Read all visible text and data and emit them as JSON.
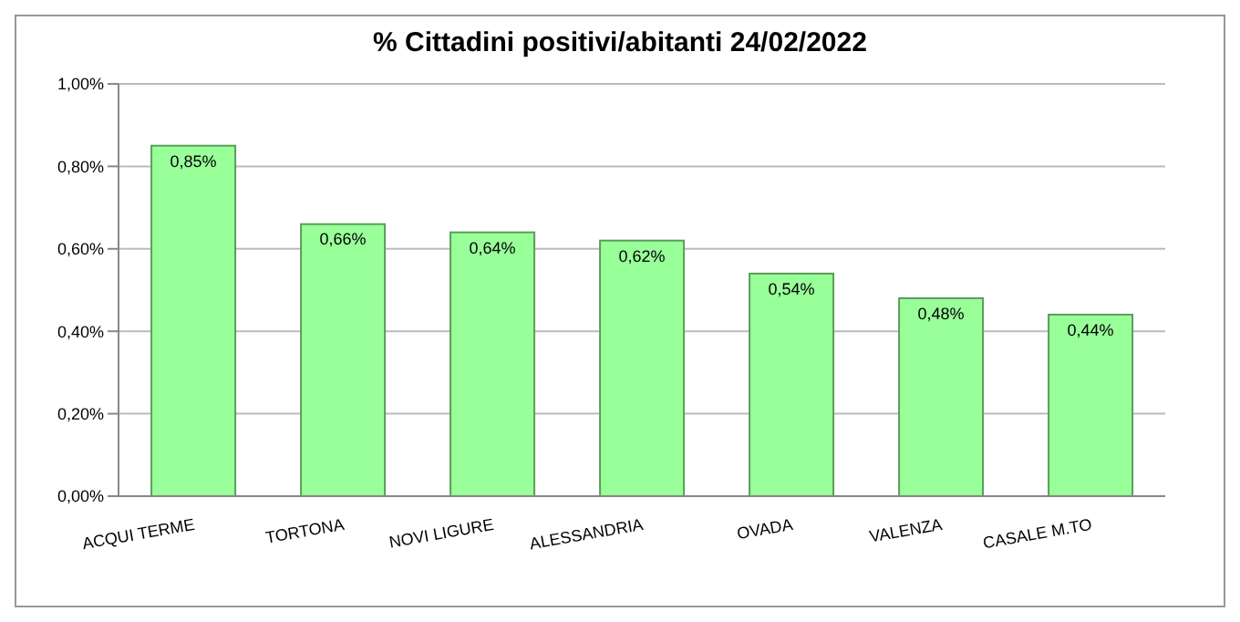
{
  "chart_data": {
    "type": "bar",
    "title": "% Cittadini positivi/abitanti  24/02/2022",
    "categories": [
      "ACQUI TERME",
      "TORTONA",
      "NOVI LIGURE",
      "ALESSANDRIA",
      "OVADA",
      "VALENZA",
      "CASALE M.TO"
    ],
    "values": [
      0.85,
      0.66,
      0.64,
      0.62,
      0.54,
      0.48,
      0.44
    ],
    "value_labels": [
      "0,85%",
      "0,66%",
      "0,64%",
      "0,62%",
      "0,54%",
      "0,48%",
      "0,44%"
    ],
    "color": "#99ff99",
    "ylim": [
      0,
      1
    ],
    "yticks": [
      {
        "value": 0,
        "label": "0,00%"
      },
      {
        "value": 0.2,
        "label": "0,20%"
      },
      {
        "value": 0.4,
        "label": "0,40%"
      },
      {
        "value": 0.6,
        "label": "0,60%"
      },
      {
        "value": 0.8,
        "label": "0,80%"
      },
      {
        "value": 1,
        "label": "1,00%"
      }
    ],
    "grid": "y"
  }
}
